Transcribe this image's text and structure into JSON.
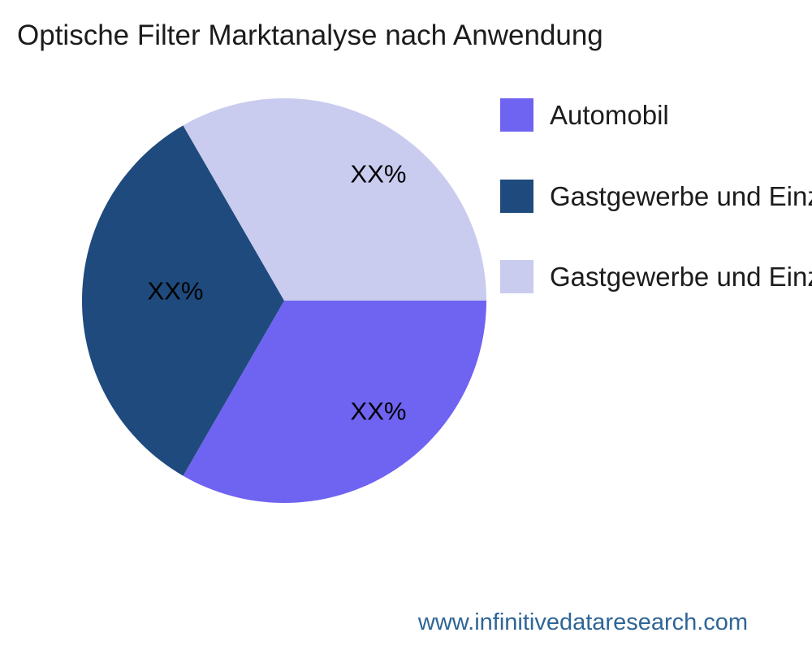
{
  "header": {
    "title": "Optische Filter Marktanalyse nach Anwendung"
  },
  "chart_data": {
    "type": "pie",
    "title": "Optische Filter Marktanalyse nach Anwendung",
    "start_angle_deg": 0,
    "direction": "clockwise",
    "legend_position": "right",
    "slices": [
      {
        "label": "Automobil",
        "value": 33.33,
        "value_label": "XX%",
        "color": "#6f63f1"
      },
      {
        "label": "Gastgewerbe und Einz",
        "value": 33.33,
        "value_label": "XX%",
        "color": "#1f4a7d"
      },
      {
        "label": "Gastgewerbe und Einz",
        "value": 33.33,
        "value_label": "XX%",
        "color": "#c9cbef"
      }
    ]
  },
  "footer": {
    "link_text": "www.infinitivedataresearch.com",
    "link_color": "#2f6596"
  }
}
